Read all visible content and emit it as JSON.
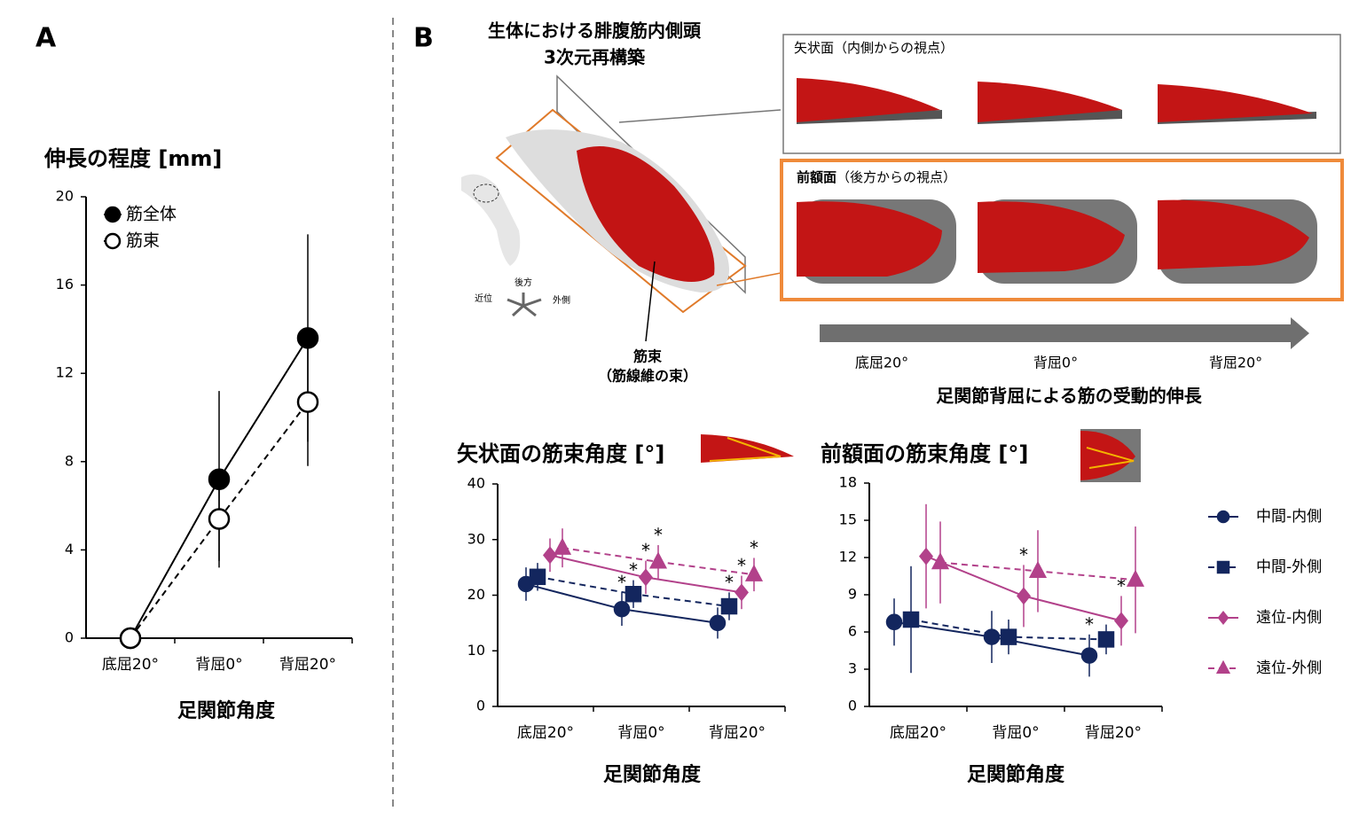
{
  "panel_a_label": "A",
  "panel_b": {
    "label": "B",
    "recon_title": [
      "生体における腓腹筋内側頭",
      "3次元再構築"
    ],
    "sagittal": {
      "name": "矢状面",
      "view": "（内側からの視点）"
    },
    "frontal": {
      "name": "前額面",
      "view": "（後方からの視点）"
    },
    "fascicle": [
      "筋束",
      "（筋線維の束）"
    ],
    "directions": [
      "後方",
      "近位",
      "外側"
    ],
    "angles": [
      "底屈20°",
      "背屈0°",
      "背屈20°"
    ],
    "caption": "足関節背屈による筋の受動的伸長"
  },
  "chart_data": [
    {
      "type": "line",
      "title": "伸長の程度 [mm]",
      "xlabel": "足関節角度",
      "categories": [
        "底屈20°",
        "背屈0°",
        "背屈20°"
      ],
      "ylim": [
        0,
        20
      ],
      "yticks": [
        0,
        4,
        8,
        12,
        16,
        20
      ],
      "series": [
        {
          "name": "筋全体",
          "color": "#000000",
          "fill": "#000000",
          "marker": "circle",
          "line_style": "solid",
          "values": [
            0,
            7.2,
            13.6
          ],
          "errors": [
            0,
            4.0,
            4.7
          ]
        },
        {
          "name": "筋束",
          "color": "#000000",
          "fill": "#ffffff",
          "marker": "circle",
          "line_style": "dashed",
          "values": [
            0,
            5.4,
            10.7
          ],
          "errors": [
            0,
            1.9,
            2.9
          ]
        }
      ]
    },
    {
      "type": "line",
      "title": "矢状面の筋束角度 [°]",
      "xlabel": "足関節角度",
      "categories": [
        "底屈20°",
        "背屈0°",
        "背屈20°"
      ],
      "ylim": [
        0,
        40
      ],
      "yticks": [
        0,
        10,
        20,
        30,
        40
      ],
      "series": [
        {
          "name": "中間-内側",
          "color": "#13265e",
          "fill": "#13265e",
          "marker": "circle",
          "line_style": "solid",
          "values": [
            22,
            17.5,
            15
          ],
          "errors": [
            3,
            3,
            2.8
          ],
          "significance": [
            null,
            "*",
            null
          ]
        },
        {
          "name": "中間-外側",
          "color": "#13265e",
          "fill": "#13265e",
          "marker": "square",
          "line_style": "dashed",
          "values": [
            23.3,
            20.2,
            18
          ],
          "errors": [
            2.5,
            2.5,
            2.5
          ],
          "significance": [
            null,
            "*",
            "*"
          ]
        },
        {
          "name": "遠位-内側",
          "color": "#b2418a",
          "fill": "#b2418a",
          "marker": "diamond",
          "line_style": "solid",
          "values": [
            27.2,
            23.2,
            20.5
          ],
          "errors": [
            3,
            3,
            3
          ],
          "significance": [
            null,
            "*",
            "*"
          ]
        },
        {
          "name": "遠位-外側",
          "color": "#b2418a",
          "fill": "#b2418a",
          "marker": "triangle",
          "line_style": "dashed",
          "values": [
            28.5,
            26,
            23.7
          ],
          "errors": [
            3.5,
            3,
            3
          ],
          "significance": [
            null,
            "*",
            "*"
          ]
        }
      ]
    },
    {
      "type": "line",
      "title": "前額面の筋束角度 [°]",
      "xlabel": "足関節角度",
      "categories": [
        "底屈20°",
        "背屈0°",
        "背屈20°"
      ],
      "ylim": [
        0,
        18
      ],
      "yticks": [
        0,
        3,
        6,
        9,
        12,
        15,
        18
      ],
      "legend": "right",
      "series": [
        {
          "name": "中間-内側",
          "color": "#13265e",
          "fill": "#13265e",
          "marker": "circle",
          "line_style": "solid",
          "values": [
            6.8,
            5.6,
            4.1
          ],
          "errors": [
            1.9,
            2.1,
            1.7
          ],
          "significance": [
            null,
            null,
            "*"
          ]
        },
        {
          "name": "中間-外側",
          "color": "#13265e",
          "fill": "#13265e",
          "marker": "square",
          "line_style": "dashed",
          "values": [
            7.0,
            5.6,
            5.4
          ],
          "errors": [
            4.3,
            1.4,
            1.2
          ],
          "significance": [
            null,
            null,
            null
          ]
        },
        {
          "name": "遠位-内側",
          "color": "#b2418a",
          "fill": "#b2418a",
          "marker": "diamond",
          "line_style": "solid",
          "values": [
            12.1,
            8.9,
            6.9
          ],
          "errors": [
            4.2,
            2.5,
            2.0
          ],
          "significance": [
            null,
            "*",
            "*"
          ]
        },
        {
          "name": "遠位-外側",
          "color": "#b2418a",
          "fill": "#b2418a",
          "marker": "triangle",
          "line_style": "dashed",
          "values": [
            11.6,
            10.9,
            10.2
          ],
          "errors": [
            3.3,
            3.3,
            4.3
          ],
          "significance": [
            null,
            null,
            null
          ]
        }
      ]
    }
  ]
}
